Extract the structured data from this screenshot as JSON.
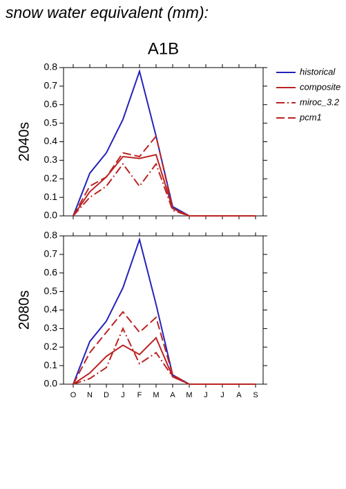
{
  "title": "snow water equivalent (mm):",
  "chart_data": [
    {
      "type": "line",
      "title": "A1B",
      "ylabel": "2040s",
      "categories": [
        null,
        null,
        null,
        null,
        null,
        null,
        null,
        null,
        null,
        null,
        null,
        null
      ],
      "ylim": [
        0,
        0.8
      ],
      "yticks": [
        {
          "value": 0,
          "label": "0.0"
        },
        0.1,
        0.2,
        0.3,
        0.4,
        0.5,
        0.6,
        0.7,
        0.8
      ],
      "legend": "outside right",
      "series": [
        {
          "name": "historical",
          "color": "#2222bb",
          "dash": "solid",
          "values": [
            0,
            0.23,
            0.34,
            0.52,
            0.78,
            0.43,
            0.05,
            0,
            0,
            0,
            0,
            0
          ]
        },
        {
          "name": "composite",
          "color": "#bb2222",
          "dash": "solid",
          "values": [
            0,
            0.13,
            0.21,
            0.32,
            0.31,
            0.33,
            0.04,
            0,
            0,
            0,
            0,
            0
          ]
        },
        {
          "name": "miroc_3.2",
          "color": "#bb2222",
          "dash": "dashdot",
          "values": [
            0,
            0.1,
            0.16,
            0.28,
            0.16,
            0.28,
            0.03,
            0,
            0,
            0,
            0,
            0
          ]
        },
        {
          "name": "pcm1",
          "color": "#bb2222",
          "dash": "dash",
          "values": [
            0,
            0.16,
            0.21,
            0.34,
            0.32,
            0.43,
            0.04,
            0,
            0,
            0,
            0,
            0
          ]
        }
      ]
    },
    {
      "type": "line",
      "ylabel": "2080s",
      "categories": [
        "O",
        "N",
        "D",
        "J",
        "F",
        "M",
        "A",
        "M",
        "J",
        "J",
        "A",
        "S"
      ],
      "ylim": [
        0,
        0.8
      ],
      "yticks": [
        {
          "value": 0,
          "label": "0.0"
        },
        0.1,
        0.2,
        0.3,
        0.4,
        0.5,
        0.6,
        0.7,
        0.8
      ],
      "series": [
        {
          "name": "historical",
          "color": "#2222bb",
          "dash": "solid",
          "values": [
            0,
            0.23,
            0.34,
            0.52,
            0.78,
            0.43,
            0.05,
            0,
            0,
            0,
            0,
            0
          ]
        },
        {
          "name": "composite",
          "color": "#bb2222",
          "dash": "solid",
          "values": [
            0,
            0.06,
            0.15,
            0.21,
            0.16,
            0.25,
            0.04,
            0,
            0,
            0,
            0,
            0
          ]
        },
        {
          "name": "miroc_3.2",
          "color": "#bb2222",
          "dash": "dashdot",
          "values": [
            0,
            0.03,
            0.09,
            0.3,
            0.11,
            0.17,
            0.04,
            0,
            0,
            0,
            0,
            0
          ]
        },
        {
          "name": "pcm1",
          "color": "#bb2222",
          "dash": "dash",
          "values": [
            0,
            0.17,
            0.28,
            0.39,
            0.28,
            0.36,
            0.05,
            0,
            0,
            0,
            0,
            0
          ]
        }
      ]
    }
  ]
}
